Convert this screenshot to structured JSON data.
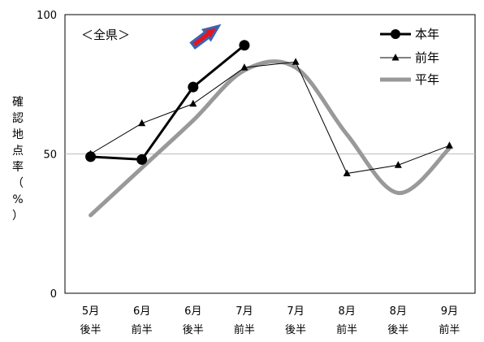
{
  "chart_data": {
    "type": "line",
    "inset_label": "＜全県＞",
    "ylabel": "確認地点率（%）",
    "ylim": [
      0,
      100
    ],
    "yticks": [
      0,
      50,
      100
    ],
    "categories": [
      {
        "top": "5月",
        "bottom": "後半"
      },
      {
        "top": "6月",
        "bottom": "前半"
      },
      {
        "top": "6月",
        "bottom": "後半"
      },
      {
        "top": "7月",
        "bottom": "前半"
      },
      {
        "top": "7月",
        "bottom": "後半"
      },
      {
        "top": "8月",
        "bottom": "前半"
      },
      {
        "top": "8月",
        "bottom": "後半"
      },
      {
        "top": "9月",
        "bottom": "前半"
      }
    ],
    "series": [
      {
        "name": "本年",
        "color": "#000000",
        "marker": "circle",
        "values": [
          49,
          48,
          74,
          89,
          null,
          null,
          null,
          null
        ]
      },
      {
        "name": "前年",
        "color": "#000000",
        "marker": "triangle",
        "values": [
          50,
          61,
          68,
          81,
          83,
          43,
          46,
          53
        ]
      },
      {
        "name": "平年",
        "color": "#999999",
        "marker": "none",
        "smooth": true,
        "values": [
          28,
          45,
          62,
          80,
          81,
          57,
          36,
          52
        ]
      }
    ],
    "gridlines": [
      50
    ],
    "legend": "top-right",
    "trend_arrow": {
      "from_category": 2.5,
      "from_value": 89,
      "to_category": 3.0,
      "to_value": 100,
      "color": "#e8141b",
      "outline": "#3a63b5"
    }
  }
}
